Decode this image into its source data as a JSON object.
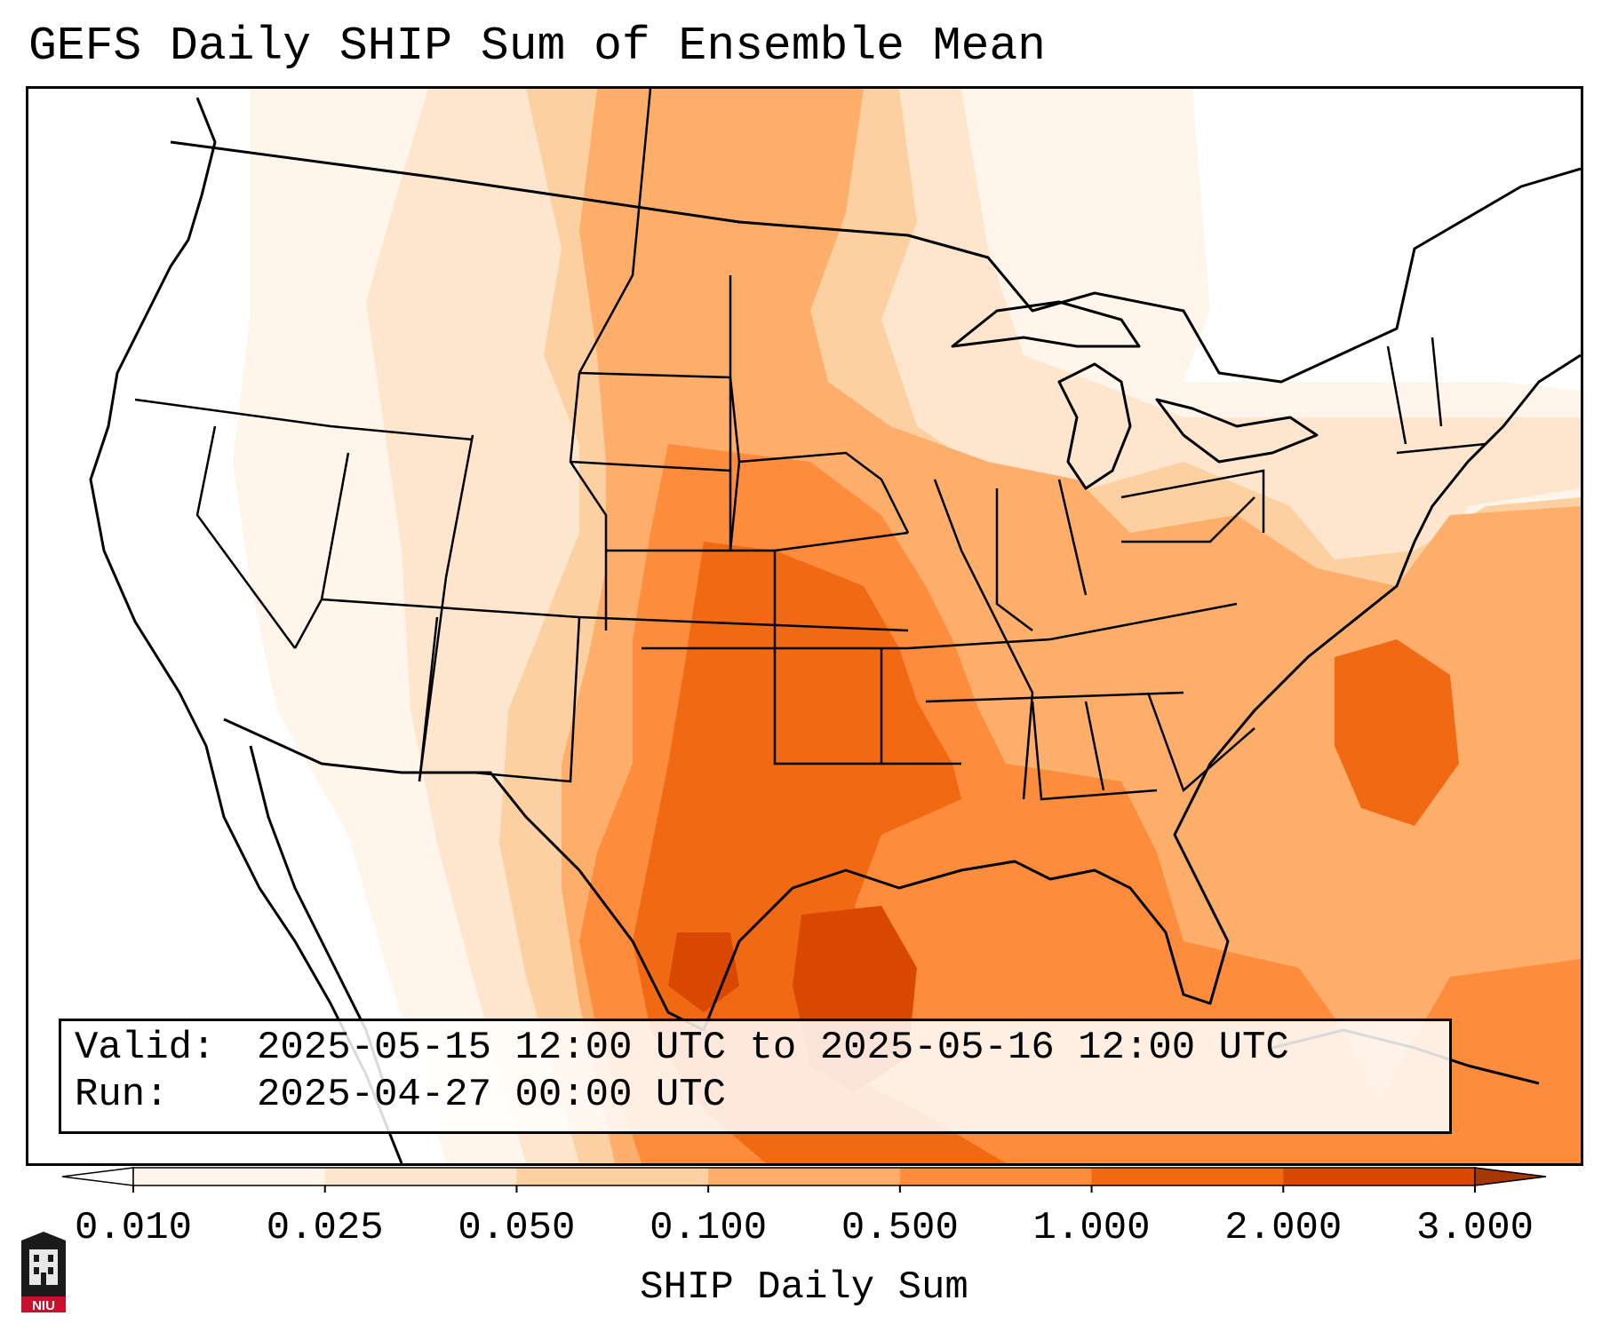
{
  "title": "GEFS Daily SHIP Sum of Ensemble Mean",
  "info": {
    "valid_label": "Valid:",
    "valid_value": "2025-05-15 12:00 UTC to 2025-05-16 12:00 UTC",
    "run_label": "Run:",
    "run_value": "2025-04-27 00:00 UTC"
  },
  "colorbar": {
    "label": "SHIP Daily Sum",
    "ticks": [
      "0.010",
      "0.025",
      "0.050",
      "0.100",
      "0.500",
      "1.000",
      "2.000",
      "3.000"
    ],
    "colors": [
      "#fff5eb",
      "#fee6ce",
      "#fdd0a2",
      "#fdae6b",
      "#fd8d3c",
      "#f16913",
      "#d94801"
    ],
    "under_color": "#ffffff",
    "over_color": "#a63603"
  },
  "logo": {
    "text": "NIU",
    "icon": "university-building-icon"
  }
}
